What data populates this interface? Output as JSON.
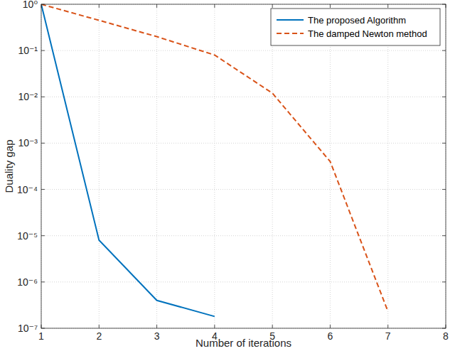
{
  "chart_data": {
    "type": "line",
    "x_label": "Number of iterations",
    "y_label": "Duality gap",
    "log": "y",
    "grid": true,
    "legend": "upper right",
    "xlim": [
      1,
      8
    ],
    "xticks": [
      1,
      2,
      3,
      4,
      5,
      6,
      7,
      8
    ],
    "ylim": [
      1e-07,
      1
    ],
    "yticks": [
      {
        "value": 1e-07,
        "label": "10⁻⁷"
      },
      {
        "value": 1e-06,
        "label": "10⁻⁶"
      },
      {
        "value": 1e-05,
        "label": "10⁻⁵"
      },
      {
        "value": 0.0001,
        "label": "10⁻⁴"
      },
      {
        "value": 0.001,
        "label": "10⁻³"
      },
      {
        "value": 0.01,
        "label": "10⁻²"
      },
      {
        "value": 0.1,
        "label": "10⁻¹"
      },
      {
        "value": 1,
        "label": "10⁰"
      }
    ],
    "series": [
      {
        "name": "The proposed Algorithm",
        "color": "#0072bd",
        "line_style": "solid",
        "x": [
          1,
          2,
          3,
          4
        ],
        "values": [
          1,
          8e-06,
          4e-07,
          1.8e-07
        ]
      },
      {
        "name": "The damped Newton method",
        "color": "#d95319",
        "line_style": "dashed",
        "x": [
          1,
          2,
          3,
          4,
          5,
          6,
          7
        ],
        "values": [
          1,
          0.45,
          0.2,
          0.08,
          0.012,
          0.0004,
          2.3e-07
        ]
      }
    ]
  }
}
